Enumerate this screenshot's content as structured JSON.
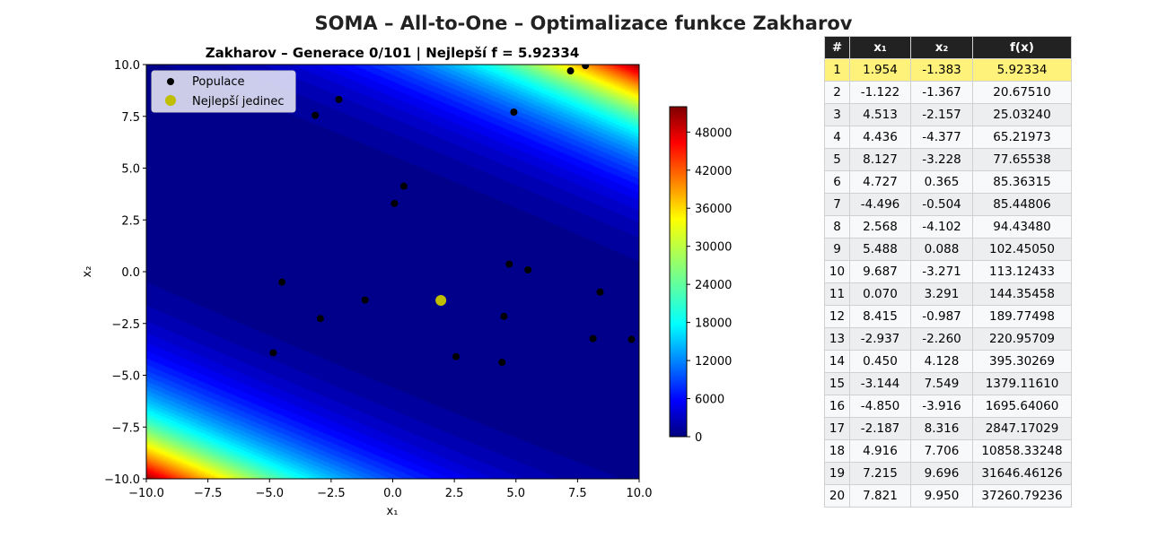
{
  "suptitle": "SOMA – All-to-One – Optimalizace funkce Zakharov",
  "chart_data": {
    "type": "scatter",
    "background": "contour",
    "title": "Zakharov – Generace 0/101 | Nejlepší f = 5.92334",
    "xlabel": "x₁",
    "ylabel": "x₂",
    "xlim": [
      -10,
      10
    ],
    "ylim": [
      -10,
      10
    ],
    "xticks": [
      "−10.0",
      "−7.5",
      "−5.0",
      "−2.5",
      "0.0",
      "2.5",
      "5.0",
      "7.5",
      "10.0"
    ],
    "yticks": [
      "10.0",
      "7.5",
      "5.0",
      "2.5",
      "0.0",
      "−2.5",
      "−5.0",
      "−7.5",
      "−10.0"
    ],
    "colorbar": {
      "ticks": [
        "48000",
        "42000",
        "36000",
        "30000",
        "24000",
        "18000",
        "12000",
        "6000",
        "0"
      ],
      "range": [
        0,
        52000
      ],
      "colormap": "jet"
    },
    "legend": {
      "placement": "top-left",
      "entries": [
        {
          "label": "Populace",
          "color": "#000000"
        },
        {
          "label": "Nejlepší jedinec",
          "color": "#bfbf00"
        }
      ]
    },
    "population": [
      {
        "x": 1.954,
        "y": -1.383
      },
      {
        "x": -1.122,
        "y": -1.367
      },
      {
        "x": 4.513,
        "y": -2.157
      },
      {
        "x": 4.436,
        "y": -4.377
      },
      {
        "x": 8.127,
        "y": -3.228
      },
      {
        "x": 4.727,
        "y": 0.365
      },
      {
        "x": -4.496,
        "y": -0.504
      },
      {
        "x": 2.568,
        "y": -4.102
      },
      {
        "x": 5.488,
        "y": 0.088
      },
      {
        "x": 9.687,
        "y": -3.271
      },
      {
        "x": 0.07,
        "y": 3.291
      },
      {
        "x": 8.415,
        "y": -0.987
      },
      {
        "x": -2.937,
        "y": -2.26
      },
      {
        "x": 0.45,
        "y": 4.128
      },
      {
        "x": -3.144,
        "y": 7.549
      },
      {
        "x": -4.85,
        "y": -3.916
      },
      {
        "x": -2.187,
        "y": 8.316
      },
      {
        "x": 4.916,
        "y": 7.706
      },
      {
        "x": 7.215,
        "y": 9.696
      },
      {
        "x": 7.821,
        "y": 9.95
      }
    ],
    "best": {
      "x": 1.954,
      "y": -1.383
    }
  },
  "table": {
    "headers": [
      "#",
      "x₁",
      "x₂",
      "f(x)"
    ],
    "rows": [
      [
        "1",
        "1.954",
        "-1.383",
        "5.92334"
      ],
      [
        "2",
        "-1.122",
        "-1.367",
        "20.67510"
      ],
      [
        "3",
        "4.513",
        "-2.157",
        "25.03240"
      ],
      [
        "4",
        "4.436",
        "-4.377",
        "65.21973"
      ],
      [
        "5",
        "8.127",
        "-3.228",
        "77.65538"
      ],
      [
        "6",
        "4.727",
        "0.365",
        "85.36315"
      ],
      [
        "7",
        "-4.496",
        "-0.504",
        "85.44806"
      ],
      [
        "8",
        "2.568",
        "-4.102",
        "94.43480"
      ],
      [
        "9",
        "5.488",
        "0.088",
        "102.45050"
      ],
      [
        "10",
        "9.687",
        "-3.271",
        "113.12433"
      ],
      [
        "11",
        "0.070",
        "3.291",
        "144.35458"
      ],
      [
        "12",
        "8.415",
        "-0.987",
        "189.77498"
      ],
      [
        "13",
        "-2.937",
        "-2.260",
        "220.95709"
      ],
      [
        "14",
        "0.450",
        "4.128",
        "395.30269"
      ],
      [
        "15",
        "-3.144",
        "7.549",
        "1379.11610"
      ],
      [
        "16",
        "-4.850",
        "-3.916",
        "1695.64060"
      ],
      [
        "17",
        "-2.187",
        "8.316",
        "2847.17029"
      ],
      [
        "18",
        "4.916",
        "7.706",
        "10858.33248"
      ],
      [
        "19",
        "7.215",
        "9.696",
        "31646.46126"
      ],
      [
        "20",
        "7.821",
        "9.950",
        "37260.79236"
      ]
    ],
    "highlight_color": "#fff27a"
  }
}
